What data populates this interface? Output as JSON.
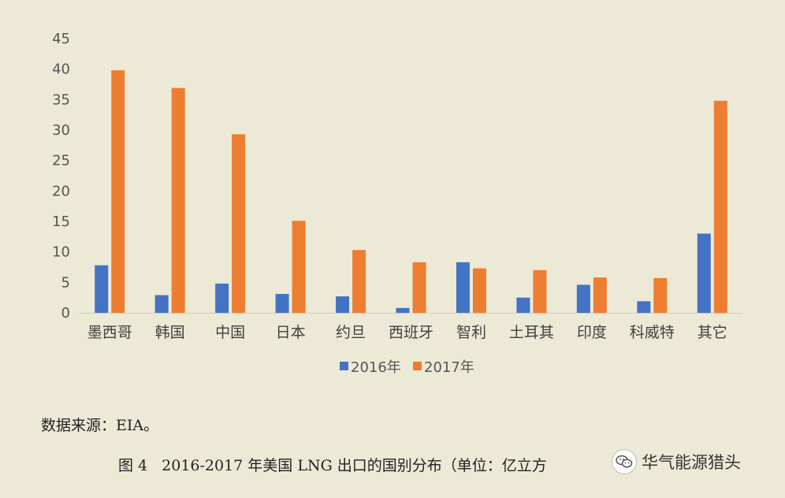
{
  "chart_data": {
    "type": "bar",
    "categories": [
      "墨西哥",
      "韩国",
      "中国",
      "日本",
      "约旦",
      "西班牙",
      "智利",
      "土耳其",
      "印度",
      "科威特",
      "其它"
    ],
    "series": [
      {
        "name": "2016年",
        "color": "#4472c4",
        "values": [
          7.8,
          2.9,
          4.8,
          3.1,
          2.7,
          0.8,
          8.3,
          2.5,
          4.6,
          1.9,
          13.0
        ]
      },
      {
        "name": "2017年",
        "color": "#ed7d31",
        "values": [
          39.8,
          36.9,
          29.3,
          15.1,
          10.3,
          8.3,
          7.3,
          7.0,
          5.8,
          5.7,
          34.8
        ]
      }
    ],
    "yticks": [
      "0",
      "5",
      "10",
      "15",
      "20",
      "25",
      "30",
      "35",
      "40",
      "45"
    ],
    "ylim": [
      0,
      45
    ],
    "grid": false,
    "legend_position": "bottom-center",
    "title": "",
    "xlabel": "",
    "ylabel": ""
  },
  "source_note": "数据来源：EIA。",
  "caption": {
    "label": "图 4",
    "text": "2016-2017 年美国 LNG 出口的国别分布（单位：亿立方"
  },
  "watermark": {
    "icon": "wechat-icon",
    "text": "华气能源猎头"
  }
}
